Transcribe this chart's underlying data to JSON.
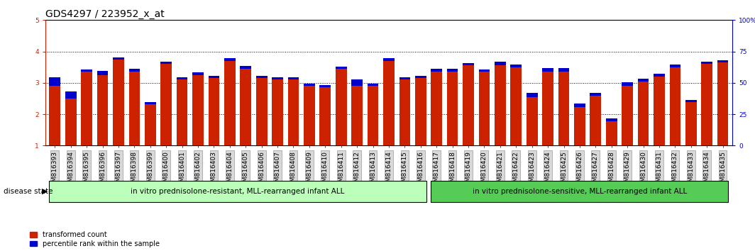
{
  "title": "GDS4297 / 223952_x_at",
  "samples": [
    "GSM816393",
    "GSM816394",
    "GSM816395",
    "GSM816396",
    "GSM816397",
    "GSM816398",
    "GSM816399",
    "GSM816400",
    "GSM816401",
    "GSM816402",
    "GSM816403",
    "GSM816404",
    "GSM816405",
    "GSM816406",
    "GSM816407",
    "GSM816408",
    "GSM816409",
    "GSM816410",
    "GSM816411",
    "GSM816412",
    "GSM816413",
    "GSM816414",
    "GSM816415",
    "GSM816416",
    "GSM816417",
    "GSM816418",
    "GSM816419",
    "GSM816420",
    "GSM816421",
    "GSM816422",
    "GSM816423",
    "GSM816424",
    "GSM816425",
    "GSM816426",
    "GSM816427",
    "GSM816428",
    "GSM816429",
    "GSM816430",
    "GSM816431",
    "GSM816432",
    "GSM816433",
    "GSM816434",
    "GSM816435"
  ],
  "red_values": [
    2.9,
    2.5,
    3.35,
    3.25,
    3.75,
    3.35,
    2.32,
    3.6,
    3.1,
    3.25,
    3.15,
    3.7,
    3.45,
    3.15,
    3.1,
    3.1,
    2.9,
    2.85,
    3.45,
    2.9,
    2.9,
    3.7,
    3.1,
    3.15,
    3.35,
    3.35,
    3.55,
    3.35,
    3.55,
    3.5,
    2.55,
    3.35,
    3.35,
    2.22,
    2.6,
    1.78,
    2.9,
    3.05,
    3.2,
    3.5,
    2.38,
    3.6,
    3.65
  ],
  "blue_values": [
    0.27,
    0.22,
    0.08,
    0.14,
    0.07,
    0.09,
    0.07,
    0.07,
    0.07,
    0.08,
    0.08,
    0.08,
    0.08,
    0.07,
    0.07,
    0.07,
    0.07,
    0.07,
    0.07,
    0.22,
    0.08,
    0.08,
    0.07,
    0.07,
    0.09,
    0.09,
    0.08,
    0.08,
    0.12,
    0.08,
    0.13,
    0.12,
    0.12,
    0.12,
    0.08,
    0.08,
    0.12,
    0.08,
    0.08,
    0.08,
    0.08,
    0.08,
    0.07
  ],
  "group1_count": 24,
  "group2_count": 19,
  "group1_label": "in vitro prednisolone-resistant, MLL-rearranged infant ALL",
  "group2_label": "in vitro prednisolone-sensitive, MLL-rearranged infant ALL",
  "group1_color": "#bbffbb",
  "group2_color": "#55cc55",
  "bar_color": "#cc2200",
  "blue_color": "#0000cc",
  "ylim_left": [
    1,
    5
  ],
  "ylim_right": [
    0,
    100
  ],
  "yticks_left": [
    1,
    2,
    3,
    4,
    5
  ],
  "yticks_right": [
    0,
    25,
    50,
    75,
    100
  ],
  "yticklabels_right": [
    "0",
    "25",
    "50",
    "75",
    "100%"
  ],
  "bar_width": 0.7,
  "disease_state_label": "disease state",
  "legend_red": "transformed count",
  "legend_blue": "percentile rank within the sample",
  "title_fontsize": 10,
  "tick_fontsize": 6.5,
  "axis_color_left": "#cc2200",
  "axis_color_right": "#0000cc"
}
